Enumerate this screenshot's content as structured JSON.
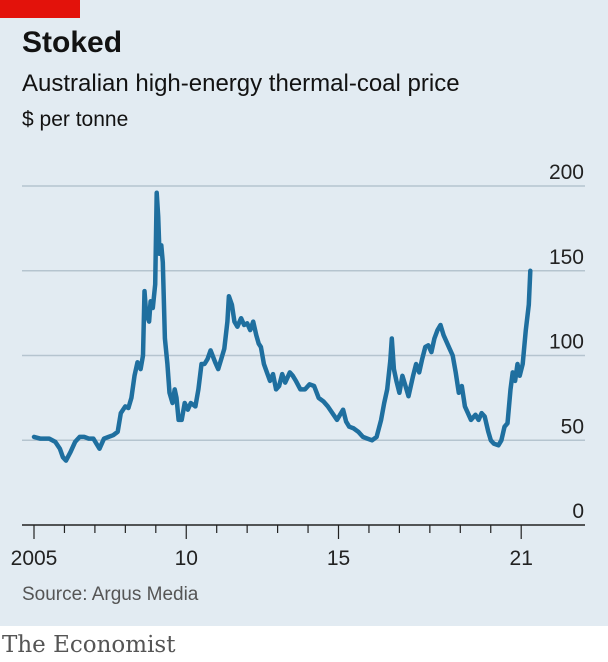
{
  "header": {
    "title": "Stoked",
    "subtitle": "Australian high-energy thermal-coal price",
    "unit": "$ per tonne"
  },
  "footer": {
    "source": "Source: Argus Media",
    "brand": "The Economist"
  },
  "colors": {
    "background": "#e2ebf2",
    "line": "#1f6f9f",
    "brand_red": "#e3120b",
    "grid": "#b5c4cf"
  },
  "chart_data": {
    "type": "line",
    "title": "Stoked",
    "subtitle": "Australian high-energy thermal-coal price",
    "ylabel": "$ per tonne",
    "xlabel": "",
    "x_ticks": [
      {
        "value": 2005,
        "label": "2005"
      },
      {
        "value": 2010,
        "label": "10"
      },
      {
        "value": 2015,
        "label": "15"
      },
      {
        "value": 2021,
        "label": "21"
      }
    ],
    "xlim": [
      2004.95,
      2022.3
    ],
    "y_ticks": [
      0,
      50,
      100,
      150,
      200
    ],
    "ylim": [
      0,
      200
    ],
    "grid": true,
    "y_axis_side": "right",
    "series": [
      {
        "values": [
          [
            2005.0,
            52
          ],
          [
            2005.2,
            51
          ],
          [
            2005.5,
            51
          ],
          [
            2005.7,
            49
          ],
          [
            2005.85,
            45
          ],
          [
            2005.95,
            40
          ],
          [
            2006.05,
            38
          ],
          [
            2006.2,
            43
          ],
          [
            2006.35,
            49
          ],
          [
            2006.5,
            52
          ],
          [
            2006.65,
            52
          ],
          [
            2006.8,
            51
          ],
          [
            2006.95,
            51
          ],
          [
            2007.05,
            48
          ],
          [
            2007.15,
            45
          ],
          [
            2007.3,
            51
          ],
          [
            2007.45,
            52
          ],
          [
            2007.6,
            53
          ],
          [
            2007.75,
            55
          ],
          [
            2007.85,
            66
          ],
          [
            2008.0,
            70
          ],
          [
            2008.1,
            69
          ],
          [
            2008.2,
            75
          ],
          [
            2008.3,
            88
          ],
          [
            2008.4,
            96
          ],
          [
            2008.5,
            92
          ],
          [
            2008.58,
            100
          ],
          [
            2008.63,
            138
          ],
          [
            2008.68,
            125
          ],
          [
            2008.78,
            120
          ],
          [
            2008.83,
            132
          ],
          [
            2008.9,
            128
          ],
          [
            2008.98,
            142
          ],
          [
            2009.03,
            196
          ],
          [
            2009.08,
            182
          ],
          [
            2009.12,
            160
          ],
          [
            2009.18,
            165
          ],
          [
            2009.23,
            155
          ],
          [
            2009.3,
            110
          ],
          [
            2009.38,
            95
          ],
          [
            2009.45,
            78
          ],
          [
            2009.55,
            72
          ],
          [
            2009.62,
            80
          ],
          [
            2009.68,
            75
          ],
          [
            2009.75,
            62
          ],
          [
            2009.85,
            62
          ],
          [
            2009.95,
            72
          ],
          [
            2010.05,
            68
          ],
          [
            2010.15,
            72
          ],
          [
            2010.3,
            70
          ],
          [
            2010.4,
            80
          ],
          [
            2010.5,
            95
          ],
          [
            2010.6,
            95
          ],
          [
            2010.7,
            98
          ],
          [
            2010.8,
            103
          ],
          [
            2010.95,
            96
          ],
          [
            2011.05,
            92
          ],
          [
            2011.15,
            98
          ],
          [
            2011.25,
            104
          ],
          [
            2011.35,
            120
          ],
          [
            2011.4,
            135
          ],
          [
            2011.5,
            130
          ],
          [
            2011.58,
            120
          ],
          [
            2011.68,
            117
          ],
          [
            2011.8,
            122
          ],
          [
            2011.9,
            118
          ],
          [
            2012.0,
            119
          ],
          [
            2012.1,
            115
          ],
          [
            2012.2,
            120
          ],
          [
            2012.3,
            112
          ],
          [
            2012.38,
            107
          ],
          [
            2012.45,
            105
          ],
          [
            2012.55,
            95
          ],
          [
            2012.65,
            90
          ],
          [
            2012.75,
            85
          ],
          [
            2012.85,
            89
          ],
          [
            2012.95,
            80
          ],
          [
            2013.05,
            82
          ],
          [
            2013.15,
            89
          ],
          [
            2013.25,
            84
          ],
          [
            2013.4,
            90
          ],
          [
            2013.5,
            88
          ],
          [
            2013.6,
            85
          ],
          [
            2013.75,
            80
          ],
          [
            2013.9,
            80
          ],
          [
            2014.05,
            83
          ],
          [
            2014.2,
            82
          ],
          [
            2014.35,
            75
          ],
          [
            2014.5,
            73
          ],
          [
            2014.65,
            70
          ],
          [
            2014.8,
            66
          ],
          [
            2014.95,
            62
          ],
          [
            2015.05,
            65
          ],
          [
            2015.15,
            68
          ],
          [
            2015.25,
            61
          ],
          [
            2015.35,
            58
          ],
          [
            2015.5,
            57
          ],
          [
            2015.65,
            55
          ],
          [
            2015.8,
            52
          ],
          [
            2015.95,
            51
          ],
          [
            2016.1,
            50
          ],
          [
            2016.25,
            52
          ],
          [
            2016.4,
            62
          ],
          [
            2016.5,
            72
          ],
          [
            2016.6,
            80
          ],
          [
            2016.7,
            97
          ],
          [
            2016.75,
            110
          ],
          [
            2016.82,
            92
          ],
          [
            2016.9,
            85
          ],
          [
            2017.0,
            78
          ],
          [
            2017.1,
            88
          ],
          [
            2017.2,
            82
          ],
          [
            2017.3,
            76
          ],
          [
            2017.45,
            88
          ],
          [
            2017.55,
            95
          ],
          [
            2017.65,
            90
          ],
          [
            2017.75,
            98
          ],
          [
            2017.85,
            105
          ],
          [
            2017.95,
            106
          ],
          [
            2018.05,
            102
          ],
          [
            2018.15,
            110
          ],
          [
            2018.25,
            115
          ],
          [
            2018.35,
            118
          ],
          [
            2018.45,
            112
          ],
          [
            2018.55,
            108
          ],
          [
            2018.65,
            104
          ],
          [
            2018.75,
            100
          ],
          [
            2018.85,
            90
          ],
          [
            2018.95,
            78
          ],
          [
            2019.05,
            82
          ],
          [
            2019.15,
            70
          ],
          [
            2019.25,
            66
          ],
          [
            2019.35,
            62
          ],
          [
            2019.5,
            65
          ],
          [
            2019.6,
            62
          ],
          [
            2019.7,
            66
          ],
          [
            2019.8,
            64
          ],
          [
            2019.92,
            55
          ],
          [
            2020.0,
            50
          ],
          [
            2020.1,
            48
          ],
          [
            2020.25,
            47
          ],
          [
            2020.35,
            50
          ],
          [
            2020.45,
            58
          ],
          [
            2020.55,
            60
          ],
          [
            2020.65,
            80
          ],
          [
            2020.72,
            90
          ],
          [
            2020.8,
            85
          ],
          [
            2020.88,
            95
          ],
          [
            2020.95,
            88
          ],
          [
            2021.05,
            95
          ],
          [
            2021.15,
            115
          ],
          [
            2021.25,
            130
          ],
          [
            2021.3,
            150
          ]
        ]
      }
    ]
  }
}
